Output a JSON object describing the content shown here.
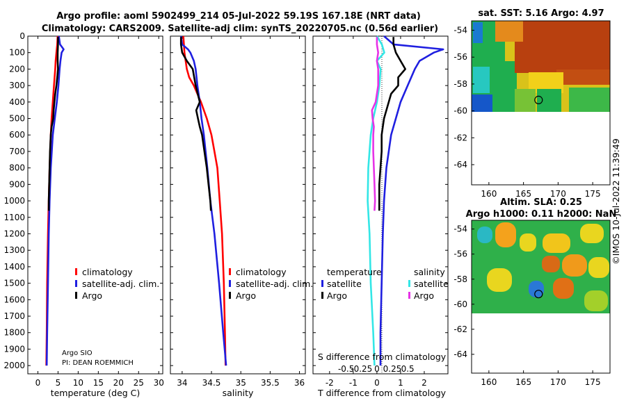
{
  "title_line1": "Argo profile: aoml 5902499_214 05-Jul-2022 59.19S 167.18E (NRT data)",
  "title_line2": "Climatology: CARS2009. Satellite-adj clim: synTS_20220705.nc (0.56d earlier)",
  "credit_line1": "Argo SIO",
  "credit_line2": "PI: DEAN ROEMMICH",
  "watermark": "©IMOS 10-Jul-2022 11:39:49",
  "colors": {
    "climatology": "#ff0000",
    "satellite": "#1f1fe0",
    "argo": "#000000",
    "sat_salinity": "#33e6e6",
    "argo_salinity": "#e633e6"
  },
  "legend_temp": [
    "climatology",
    "satellite-adj. clim.",
    "Argo"
  ],
  "legend_sal": [
    "climatology",
    "satellite-adj. clim.",
    "Argo"
  ],
  "legend_diff_temp": {
    "header": "temperature",
    "items": [
      "satellite",
      "Argo"
    ]
  },
  "legend_diff_sal": {
    "header": "salinity",
    "items": [
      "satellite",
      "Argo"
    ]
  },
  "chart_data": [
    {
      "type": "line",
      "name": "temperature-profile",
      "xlabel": "temperature (deg C)",
      "ylabel": "",
      "xlim": [
        -2.5,
        31
      ],
      "ylim": [
        0,
        2050
      ],
      "invert_y": true,
      "xticks": [
        0,
        5,
        10,
        15,
        20,
        25,
        30
      ],
      "yticks": [
        0,
        100,
        200,
        300,
        400,
        500,
        600,
        700,
        800,
        900,
        1000,
        1100,
        1200,
        1300,
        1400,
        1500,
        1600,
        1700,
        1800,
        1900,
        2000
      ],
      "series": [
        {
          "name": "climatology",
          "depth": [
            0,
            50,
            100,
            150,
            200,
            300,
            400,
            500,
            600,
            800,
            1000,
            1200,
            1500,
            1800,
            2000
          ],
          "values": [
            4.9,
            4.8,
            4.6,
            4.4,
            4.3,
            4.0,
            3.7,
            3.4,
            3.2,
            2.9,
            2.7,
            2.5,
            2.3,
            2.2,
            2.1
          ]
        },
        {
          "name": "satellite-adj. clim.",
          "depth": [
            0,
            50,
            80,
            100,
            150,
            200,
            300,
            400,
            500,
            600,
            800,
            1000,
            1200,
            1500,
            1800,
            2000
          ],
          "values": [
            5.2,
            5.5,
            6.4,
            5.9,
            5.6,
            5.4,
            5.1,
            4.7,
            4.2,
            3.7,
            3.2,
            2.9,
            2.7,
            2.5,
            2.3,
            2.2
          ]
        },
        {
          "name": "Argo",
          "depth": [
            5,
            50,
            100,
            150,
            200,
            250,
            300,
            350,
            400,
            450,
            500,
            550,
            600,
            700,
            800,
            900,
            1000,
            1060
          ],
          "values": [
            5.0,
            5.0,
            4.9,
            4.9,
            5.0,
            4.8,
            4.6,
            4.3,
            4.1,
            3.9,
            3.8,
            3.4,
            3.2,
            3.0,
            2.9,
            2.8,
            2.7,
            2.7
          ]
        }
      ]
    },
    {
      "type": "line",
      "name": "salinity-profile",
      "xlabel": "salinity",
      "ylabel": "",
      "xlim": [
        33.8,
        36.1
      ],
      "ylim": [
        0,
        2050
      ],
      "invert_y": true,
      "xticks": [
        34,
        34.5,
        35,
        35.5,
        36
      ],
      "series": [
        {
          "name": "climatology",
          "depth": [
            0,
            100,
            150,
            200,
            250,
            300,
            400,
            500,
            600,
            700,
            800,
            1000,
            1200,
            1500,
            1800,
            2000
          ],
          "values": [
            34.02,
            34.04,
            34.06,
            34.08,
            34.12,
            34.2,
            34.32,
            34.42,
            34.5,
            34.55,
            34.6,
            34.64,
            34.68,
            34.71,
            34.73,
            34.74
          ]
        },
        {
          "name": "satellite-adj. clim.",
          "depth": [
            0,
            50,
            80,
            100,
            150,
            200,
            300,
            400,
            500,
            600,
            800,
            1000,
            1200,
            1500,
            1800,
            2000
          ],
          "values": [
            33.98,
            34.0,
            34.1,
            34.14,
            34.2,
            34.23,
            34.26,
            34.3,
            34.33,
            34.37,
            34.43,
            34.48,
            34.55,
            34.63,
            34.7,
            34.75
          ]
        },
        {
          "name": "Argo",
          "depth": [
            5,
            50,
            100,
            150,
            200,
            300,
            400,
            450,
            500,
            550,
            600,
            700,
            800,
            900,
            1000,
            1060
          ],
          "values": [
            33.98,
            33.98,
            34.0,
            34.08,
            34.18,
            34.23,
            34.3,
            34.24,
            34.27,
            34.3,
            34.34,
            34.38,
            34.42,
            34.45,
            34.48,
            34.49
          ]
        }
      ]
    },
    {
      "type": "line",
      "name": "difference-from-climatology",
      "xlabel": "T difference from climatology",
      "ylabel": "",
      "xlim": [
        -2.7,
        3.0
      ],
      "ylim": [
        0,
        2050
      ],
      "invert_y": true,
      "xticks": [
        -2,
        -1,
        0,
        1,
        2
      ],
      "secondary_axis": {
        "label": "S difference from climatology",
        "ticks": [
          -0.5,
          -0.25,
          0,
          0.25,
          0.5
        ],
        "tick_labels": [
          "-0.5",
          "-0.25",
          "0",
          "0.25",
          "0.5"
        ]
      },
      "series": [
        {
          "name": "T satellite",
          "depth": [
            0,
            50,
            80,
            100,
            150,
            200,
            300,
            400,
            500,
            600,
            800,
            1000,
            1200,
            1500,
            1800,
            2000
          ],
          "values": [
            0.3,
            0.7,
            2.8,
            2.4,
            1.8,
            1.6,
            1.3,
            1.0,
            0.8,
            0.6,
            0.4,
            0.3,
            0.25,
            0.2,
            0.15,
            0.15
          ]
        },
        {
          "name": "T Argo",
          "depth": [
            5,
            50,
            100,
            150,
            200,
            250,
            300,
            350,
            400,
            450,
            500,
            600,
            700,
            800,
            900,
            1000,
            1060
          ],
          "values": [
            0.7,
            0.7,
            0.8,
            1.0,
            1.2,
            0.9,
            0.9,
            0.6,
            0.5,
            0.4,
            0.3,
            0.2,
            0.2,
            0.15,
            0.1,
            0.1,
            0.1
          ]
        },
        {
          "name": "S satellite",
          "depth": [
            0,
            50,
            100,
            150,
            200,
            300,
            400,
            500,
            600,
            800,
            1000,
            1200,
            1500,
            1800,
            2000
          ],
          "values": [
            0.0,
            0.08,
            0.12,
            0.0,
            0.06,
            0.04,
            0.0,
            -0.06,
            -0.1,
            -0.14,
            -0.15,
            -0.12,
            -0.1,
            -0.06,
            -0.04
          ]
        },
        {
          "name": "S Argo",
          "depth": [
            5,
            50,
            100,
            150,
            200,
            300,
            400,
            450,
            500,
            550,
            600,
            700,
            800,
            900,
            1000,
            1060
          ],
          "values": [
            0.0,
            0.0,
            0.02,
            0.0,
            0.02,
            0.02,
            -0.02,
            -0.08,
            -0.07,
            -0.05,
            -0.06,
            -0.06,
            -0.05,
            -0.04,
            -0.03,
            -0.04
          ]
        }
      ]
    },
    {
      "type": "heatmap",
      "name": "satellite-sst-map",
      "title": "sat. SST: 5.16 Argo: 4.97",
      "xticks": [
        160,
        165,
        170,
        175
      ],
      "yticks": [
        -54,
        -56,
        -58,
        -60,
        -62,
        -64
      ],
      "xlim": [
        157.5,
        177.5
      ],
      "ylim": [
        -65.5,
        -53.3
      ],
      "data_extent": {
        "lon": [
          157.5,
          177.5
        ],
        "lat": [
          -60.2,
          -53.3
        ]
      },
      "argo_position": {
        "lon": 167.18,
        "lat": -59.19
      }
    },
    {
      "type": "heatmap",
      "name": "altimetry-sla-map",
      "title_line1": "Altim. SLA: 0.25",
      "title_line2": "Argo h1000: 0.11 h2000: NaN",
      "xticks": [
        160,
        165,
        170,
        175
      ],
      "yticks": [
        -54,
        -56,
        -58,
        -60,
        -62,
        -64
      ],
      "xlim": [
        157.5,
        177.5
      ],
      "ylim": [
        -65.5,
        -53.3
      ],
      "data_extent": {
        "lon": [
          157.5,
          177.5
        ],
        "lat": [
          -60.0,
          -53.5
        ]
      },
      "argo_position": {
        "lon": 167.18,
        "lat": -59.19
      }
    }
  ]
}
